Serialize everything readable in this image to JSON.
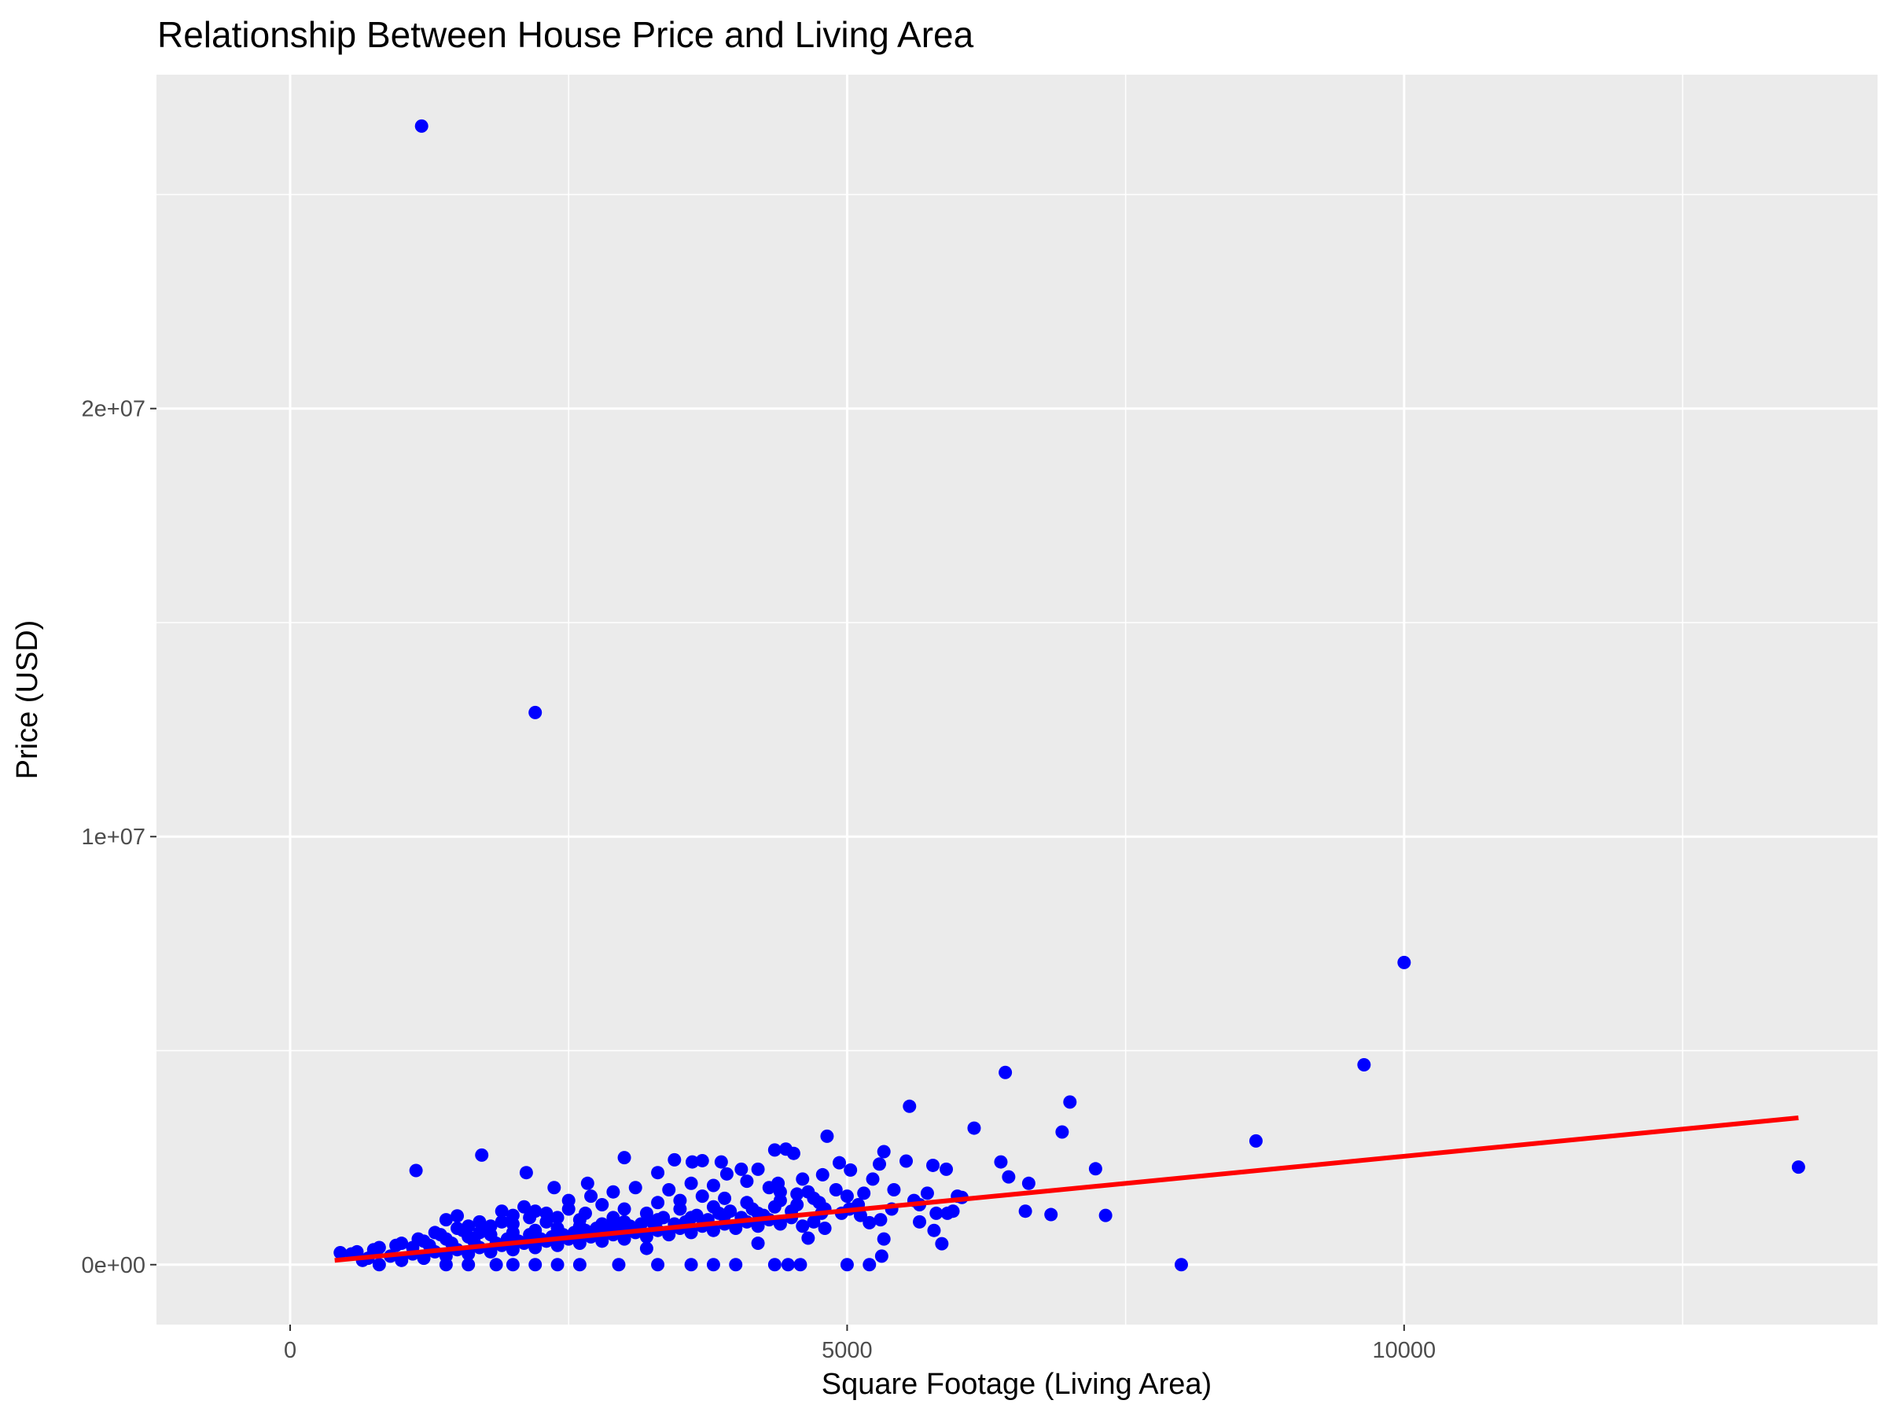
{
  "chart_data": {
    "type": "scatter",
    "title": "Relationship Between House Price and Living Area",
    "xlabel": "Square Footage (Living Area)",
    "ylabel": "Price (USD)",
    "xlim": [
      -1200,
      14250
    ],
    "ylim": [
      -1400000,
      27800000
    ],
    "x_ticks": [
      {
        "value": 0,
        "label": "0"
      },
      {
        "value": 5000,
        "label": "5000"
      },
      {
        "value": 10000,
        "label": "10000"
      }
    ],
    "y_ticks": [
      {
        "value": 0,
        "label": "0e+00"
      },
      {
        "value": 10000000,
        "label": "1e+07"
      },
      {
        "value": 20000000,
        "label": "2e+07"
      }
    ],
    "x_minor": [
      2500,
      7500,
      12500
    ],
    "y_minor": [
      5000000,
      15000000,
      25000000
    ],
    "grid": true,
    "colors": {
      "panel": "#ebebeb",
      "grid": "#ffffff",
      "points": "#0000ff",
      "trend": "#ff0000"
    },
    "trend_line": {
      "x": [
        400,
        13540
      ],
      "y": [
        100000,
        3430000
      ]
    },
    "points": [
      [
        1180,
        26600000
      ],
      [
        2200,
        12900000
      ],
      [
        10000,
        7060000
      ],
      [
        9640,
        4670000
      ],
      [
        8670,
        2890000
      ],
      [
        6420,
        4490000
      ],
      [
        7000,
        3800000
      ],
      [
        6930,
        3100000
      ],
      [
        5560,
        3700000
      ],
      [
        6140,
        3190000
      ],
      [
        7230,
        2240000
      ],
      [
        7320,
        1150000
      ],
      [
        6630,
        1900000
      ],
      [
        6450,
        2050000
      ],
      [
        6380,
        2400000
      ],
      [
        6830,
        1170000
      ],
      [
        6600,
        1250000
      ],
      [
        8000,
        0
      ],
      [
        13540,
        2280000
      ],
      [
        5990,
        1600000
      ],
      [
        5890,
        2230000
      ],
      [
        5770,
        2320000
      ],
      [
        5720,
        1670000
      ],
      [
        5650,
        1400000
      ],
      [
        5530,
        2420000
      ],
      [
        5420,
        1750000
      ],
      [
        5330,
        2640000
      ],
      [
        5230,
        2000000
      ],
      [
        5150,
        1670000
      ],
      [
        5120,
        1150000
      ],
      [
        4930,
        2380000
      ],
      [
        4820,
        3000000
      ],
      [
        4770,
        1200000
      ],
      [
        4650,
        1700000
      ],
      [
        4520,
        2600000
      ],
      [
        4450,
        2700000
      ],
      [
        4350,
        2680000
      ],
      [
        4200,
        2230000
      ],
      [
        4050,
        2230000
      ],
      [
        3870,
        2400000
      ],
      [
        3700,
        2430000
      ],
      [
        3610,
        2400000
      ],
      [
        3450,
        2450000
      ],
      [
        3000,
        2500000
      ],
      [
        1720,
        2560000
      ],
      [
        1130,
        2200000
      ],
      [
        2120,
        2150000
      ],
      [
        2370,
        1800000
      ],
      [
        2670,
        1900000
      ],
      [
        3300,
        2150000
      ],
      [
        3920,
        2120000
      ],
      [
        4380,
        1900000
      ],
      [
        4780,
        2100000
      ],
      [
        5030,
        2210000
      ],
      [
        5290,
        2350000
      ],
      [
        5020,
        1300000
      ],
      [
        5300,
        1050000
      ],
      [
        5200,
        980000
      ],
      [
        5950,
        1250000
      ],
      [
        6030,
        1570000
      ],
      [
        5850,
        490000
      ],
      [
        5780,
        800000
      ],
      [
        5650,
        1000000
      ],
      [
        5900,
        1200000
      ],
      [
        5800,
        1200000
      ],
      [
        5330,
        600000
      ],
      [
        5310,
        200000
      ],
      [
        5200,
        0
      ],
      [
        5000,
        0
      ],
      [
        4650,
        620000
      ],
      [
        4580,
        0
      ],
      [
        4470,
        0
      ],
      [
        4350,
        0
      ],
      [
        4200,
        500000
      ],
      [
        4000,
        0
      ],
      [
        3800,
        0
      ],
      [
        3600,
        0
      ],
      [
        3300,
        0
      ],
      [
        3200,
        380000
      ],
      [
        2950,
        0
      ],
      [
        2600,
        0
      ],
      [
        2400,
        0
      ],
      [
        2200,
        0
      ],
      [
        2000,
        0
      ],
      [
        1850,
        0
      ],
      [
        1600,
        0
      ],
      [
        1400,
        0
      ],
      [
        800,
        0
      ],
      [
        650,
        100000
      ],
      [
        1500,
        1140000
      ],
      [
        1700,
        1000000
      ],
      [
        1900,
        1250000
      ],
      [
        2100,
        1350000
      ],
      [
        2300,
        1200000
      ],
      [
        2500,
        1500000
      ],
      [
        2700,
        1600000
      ],
      [
        2900,
        1700000
      ],
      [
        3100,
        1800000
      ],
      [
        3400,
        1750000
      ],
      [
        3600,
        1900000
      ],
      [
        3800,
        1850000
      ],
      [
        4100,
        1950000
      ],
      [
        4300,
        1800000
      ],
      [
        4600,
        2000000
      ],
      [
        1300,
        750000
      ],
      [
        1500,
        850000
      ],
      [
        1800,
        900000
      ],
      [
        2000,
        950000
      ],
      [
        2300,
        1000000
      ],
      [
        2600,
        1050000
      ],
      [
        2900,
        1100000
      ],
      [
        3200,
        1200000
      ],
      [
        3500,
        1300000
      ],
      [
        3800,
        1350000
      ],
      [
        4100,
        1450000
      ],
      [
        4400,
        1500000
      ],
      [
        4700,
        1550000
      ],
      [
        5000,
        1600000
      ],
      [
        600,
        300000
      ],
      [
        800,
        400000
      ],
      [
        1000,
        500000
      ],
      [
        1200,
        550000
      ],
      [
        1400,
        600000
      ],
      [
        1600,
        650000
      ],
      [
        1800,
        700000
      ],
      [
        2000,
        750000
      ],
      [
        2200,
        800000
      ],
      [
        2400,
        850000
      ],
      [
        2600,
        900000
      ],
      [
        2800,
        950000
      ],
      [
        3000,
        1000000
      ],
      [
        3300,
        1050000
      ],
      [
        3600,
        1100000
      ],
      [
        3900,
        1150000
      ],
      [
        4200,
        1200000
      ],
      [
        4500,
        1250000
      ],
      [
        4800,
        1300000
      ],
      [
        700,
        150000
      ],
      [
        900,
        200000
      ],
      [
        1100,
        250000
      ],
      [
        1300,
        300000
      ],
      [
        1500,
        350000
      ],
      [
        1700,
        400000
      ],
      [
        1900,
        450000
      ],
      [
        2100,
        500000
      ],
      [
        2300,
        550000
      ],
      [
        2500,
        600000
      ],
      [
        2700,
        650000
      ],
      [
        2900,
        700000
      ],
      [
        3100,
        750000
      ],
      [
        3300,
        800000
      ],
      [
        3500,
        850000
      ],
      [
        3700,
        900000
      ],
      [
        3900,
        950000
      ],
      [
        4100,
        1000000
      ],
      [
        4300,
        1050000
      ],
      [
        4500,
        1100000
      ],
      [
        4700,
        1000000
      ],
      [
        1000,
        100000
      ],
      [
        1200,
        150000
      ],
      [
        1400,
        200000
      ],
      [
        1600,
        250000
      ],
      [
        1800,
        300000
      ],
      [
        2000,
        350000
      ],
      [
        2200,
        400000
      ],
      [
        2400,
        450000
      ],
      [
        2600,
        500000
      ],
      [
        2800,
        550000
      ],
      [
        3000,
        600000
      ],
      [
        3200,
        650000
      ],
      [
        3400,
        700000
      ],
      [
        3600,
        750000
      ],
      [
        3800,
        800000
      ],
      [
        4000,
        850000
      ],
      [
        4200,
        900000
      ],
      [
        4400,
        950000
      ],
      [
        4600,
        900000
      ],
      [
        4800,
        850000
      ],
      [
        450,
        280000
      ],
      [
        550,
        250000
      ],
      [
        750,
        350000
      ],
      [
        950,
        450000
      ],
      [
        1150,
        600000
      ],
      [
        1350,
        700000
      ],
      [
        1550,
        800000
      ],
      [
        1750,
        850000
      ],
      [
        1950,
        600000
      ],
      [
        2150,
        700000
      ],
      [
        2350,
        650000
      ],
      [
        2550,
        750000
      ],
      [
        2750,
        850000
      ],
      [
        2950,
        900000
      ],
      [
        3150,
        950000
      ],
      [
        3350,
        1100000
      ],
      [
        3550,
        1000000
      ],
      [
        3750,
        1050000
      ],
      [
        3950,
        1250000
      ],
      [
        4150,
        1300000
      ],
      [
        4350,
        1350000
      ],
      [
        4550,
        1400000
      ],
      [
        4750,
        1450000
      ],
      [
        4950,
        1200000
      ],
      [
        5100,
        1400000
      ],
      [
        5400,
        1300000
      ],
      [
        5600,
        1500000
      ],
      [
        1250,
        450000
      ],
      [
        1450,
        500000
      ],
      [
        1650,
        550000
      ],
      [
        1850,
        500000
      ],
      [
        2050,
        550000
      ],
      [
        2250,
        600000
      ],
      [
        2450,
        700000
      ],
      [
        2650,
        800000
      ],
      [
        2850,
        850000
      ],
      [
        3050,
        900000
      ],
      [
        3250,
        1000000
      ],
      [
        3450,
        950000
      ],
      [
        3650,
        1150000
      ],
      [
        3850,
        1200000
      ],
      [
        4050,
        1100000
      ],
      [
        4250,
        1150000
      ],
      [
        1100,
        400000
      ],
      [
        1700,
        750000
      ],
      [
        2400,
        1100000
      ],
      [
        3000,
        1300000
      ],
      [
        3700,
        1600000
      ],
      [
        4400,
        1700000
      ],
      [
        2800,
        1400000
      ],
      [
        3500,
        1500000
      ],
      [
        1900,
        1000000
      ],
      [
        2150,
        1100000
      ],
      [
        2650,
        1200000
      ],
      [
        3300,
        1450000
      ],
      [
        3900,
        1550000
      ],
      [
        4550,
        1650000
      ],
      [
        4900,
        1750000
      ],
      [
        2000,
        1150000
      ],
      [
        1600,
        900000
      ],
      [
        1400,
        1050000
      ],
      [
        2200,
        1250000
      ],
      [
        2500,
        1300000
      ]
    ]
  }
}
